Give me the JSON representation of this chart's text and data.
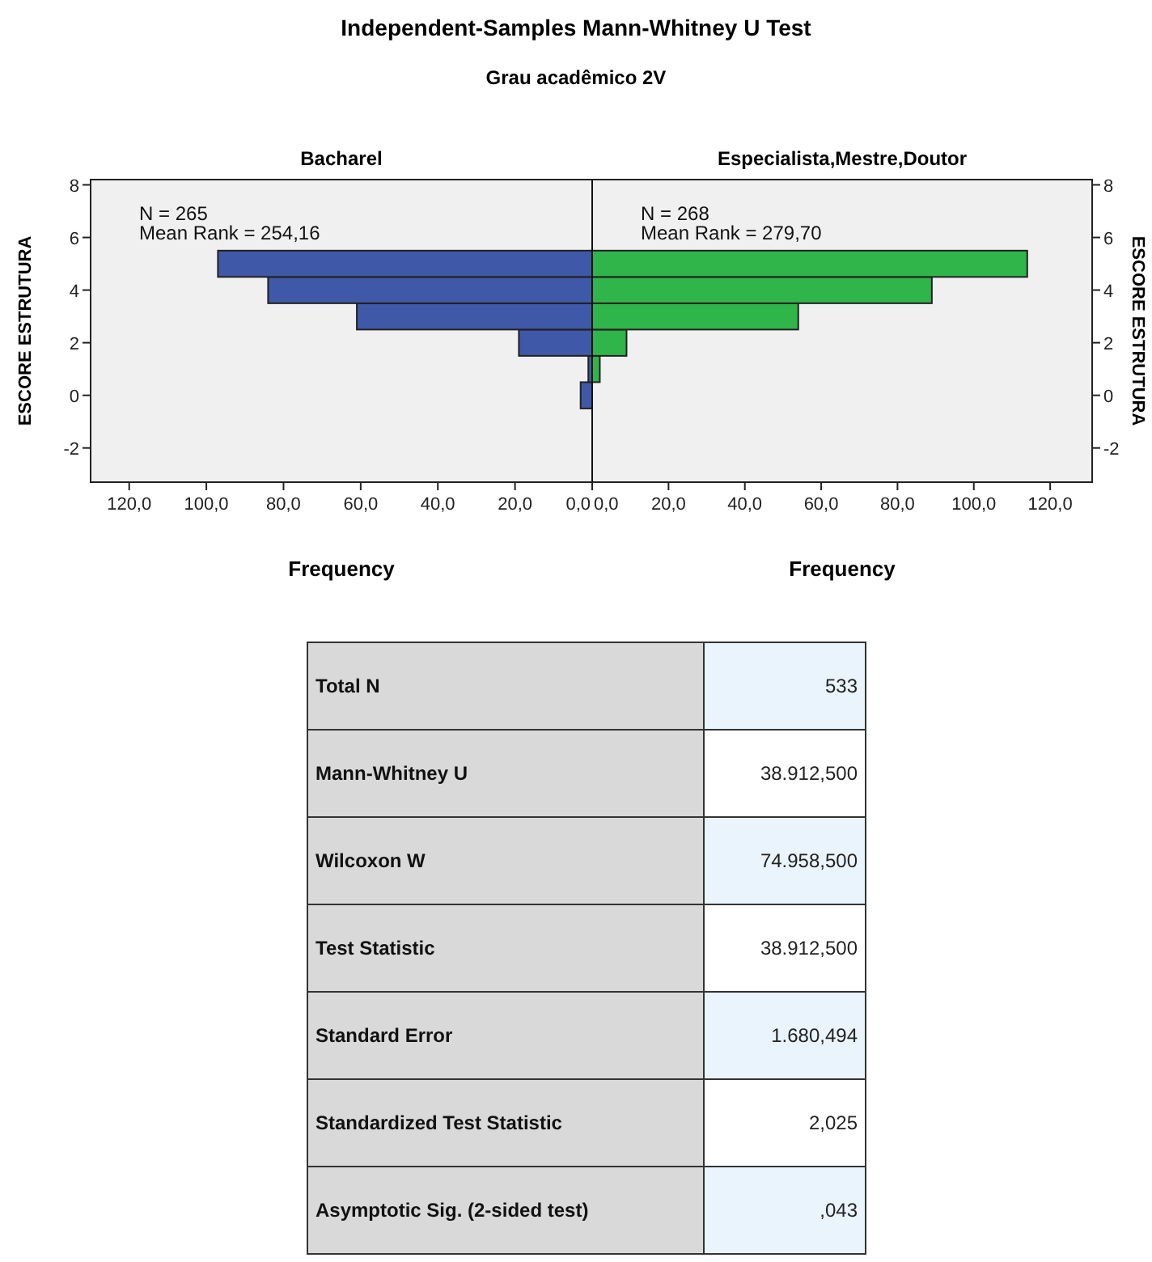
{
  "chart_data": [
    {
      "type": "other",
      "title": "Independent-Samples Mann-Whitney U Test",
      "subtitle": "Grau acadêmico 2V"
    },
    {
      "type": "histogram",
      "orientation": "horizontal",
      "title": "Bacharel",
      "xlabel": "Frequency",
      "ylabel": "ESCORE ESTRUTURA",
      "bins": [
        -0.5,
        0.5,
        1.5,
        2.5,
        3.5,
        4.5,
        5.5
      ],
      "values": [
        3,
        1,
        19,
        61,
        84,
        97
      ],
      "color": "#3f58a8",
      "xlim": [
        130,
        0
      ],
      "xticks": [
        {
          "value": 120,
          "label": "120,0"
        },
        {
          "value": 100,
          "label": "100,0"
        },
        {
          "value": 80,
          "label": "80,0"
        },
        {
          "value": 60,
          "label": "60,0"
        },
        {
          "value": 40,
          "label": "40,0"
        },
        {
          "value": 20,
          "label": "20,0"
        },
        {
          "value": 0,
          "label": "0,0"
        }
      ],
      "ylim": [
        -3.3,
        8.2
      ],
      "yticks": [
        -2,
        0,
        2,
        4,
        6,
        8
      ],
      "annotations": [
        "N = 265",
        "Mean Rank = 254,16"
      ]
    },
    {
      "type": "histogram",
      "orientation": "horizontal",
      "title": "Especialista,Mestre,Doutor",
      "xlabel": "Frequency",
      "ylabel": "ESCORE ESTRUTURA",
      "bins": [
        -0.5,
        0.5,
        1.5,
        2.5,
        3.5,
        4.5,
        5.5
      ],
      "values": [
        0,
        2,
        9,
        54,
        89,
        114
      ],
      "color": "#2fb54a",
      "xlim": [
        0,
        131
      ],
      "xticks": [
        {
          "value": 0,
          "label": "0,0"
        },
        {
          "value": 20,
          "label": "20,0"
        },
        {
          "value": 40,
          "label": "40,0"
        },
        {
          "value": 60,
          "label": "60,0"
        },
        {
          "value": 80,
          "label": "80,0"
        },
        {
          "value": 100,
          "label": "100,0"
        },
        {
          "value": 120,
          "label": "120,0"
        }
      ],
      "ylim": [
        -3.3,
        8.2
      ],
      "yticks": [
        -2,
        0,
        2,
        4,
        6,
        8
      ],
      "annotations": [
        "N = 268",
        "Mean Rank = 279,70"
      ]
    },
    {
      "type": "other",
      "categories": [
        "Total N",
        "Mann-Whitney U",
        "Wilcoxon W",
        "Test Statistic",
        "Standard Error",
        "Standardized Test Statistic",
        "Asymptotic Sig. (2-sided test)"
      ],
      "value_labels": [
        "533",
        "38.912,500",
        "74.958,500",
        "38.912,500",
        "1.680,494",
        "2,025",
        ",043"
      ]
    }
  ]
}
